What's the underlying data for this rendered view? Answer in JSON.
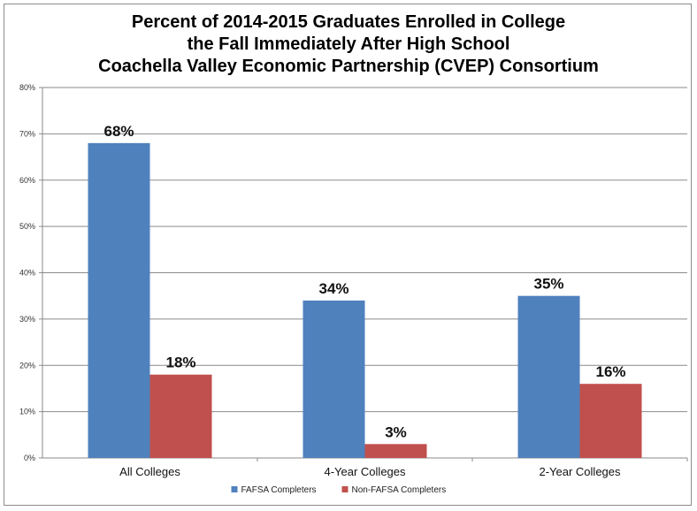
{
  "chart_data": {
    "type": "bar",
    "title_lines": [
      "Percent of 2014-2015 Graduates Enrolled in College",
      "the Fall Immediately After High School",
      "Coachella Valley Economic Partnership (CVEP) Consortium"
    ],
    "categories": [
      "All Colleges",
      "4-Year Colleges",
      "2-Year Colleges"
    ],
    "series": [
      {
        "name": "FAFSA Completers",
        "color": "#4F81BD",
        "values": [
          68,
          34,
          35
        ],
        "labels": [
          "68%",
          "34%",
          "35%"
        ]
      },
      {
        "name": "Non-FAFSA Completers",
        "color": "#C0504D",
        "values": [
          18,
          3,
          16
        ],
        "labels": [
          "18%",
          "3%",
          "16%"
        ]
      }
    ],
    "ylim": [
      0,
      80
    ],
    "yticks": [
      0,
      10,
      20,
      30,
      40,
      50,
      60,
      70,
      80
    ],
    "ytick_labels": [
      "0%",
      "10%",
      "20%",
      "30%",
      "40%",
      "50%",
      "60%",
      "70%",
      "80%"
    ],
    "grid": true,
    "legend_position": "bottom-center"
  }
}
